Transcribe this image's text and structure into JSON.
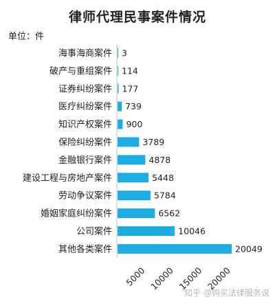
{
  "chart_data": {
    "type": "bar",
    "orientation": "horizontal",
    "title": "律师代理民事案件情况",
    "unit_label": "单位：件",
    "categories": [
      "海事海商案件",
      "破产与重组案件",
      "证券纠纷案件",
      "医疗纠纷案件",
      "知识产权案件",
      "保险纠纷案件",
      "金融银行案件",
      "建设工程与房地产案件",
      "劳动争议案件",
      "婚姻家庭纠纷案件",
      "公司案件",
      "其他各类案件"
    ],
    "values": [
      3,
      114,
      177,
      739,
      900,
      3789,
      4878,
      5448,
      5784,
      6562,
      10046,
      20049
    ],
    "value_labels": [
      "3",
      "114",
      "177",
      "739",
      "900",
      "3789",
      "4878",
      "5448",
      "5784",
      "6562",
      "10046",
      "20049"
    ],
    "x_ticks": [
      5000,
      10000,
      15000,
      20000
    ],
    "x_tick_labels": [
      "5000",
      "10000",
      "15000",
      "20000"
    ],
    "xlim": [
      0,
      20049
    ],
    "grid": false,
    "legend": "none",
    "bar_color": "#1cade4"
  },
  "watermark": "知乎 @购买法律服务说"
}
